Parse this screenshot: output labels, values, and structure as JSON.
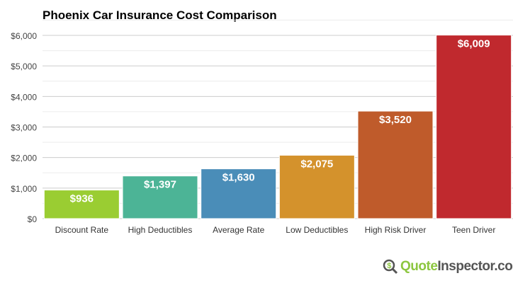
{
  "chart_data": {
    "type": "bar",
    "title": "Phoenix Car Insurance Cost Comparison",
    "categories": [
      "Discount Rate",
      "High Deductibles",
      "Average Rate",
      "Low Deductibles",
      "High Risk Driver",
      "Teen Driver"
    ],
    "values": [
      936,
      1397,
      1630,
      2075,
      3520,
      6009
    ],
    "data_labels": [
      "$936",
      "$1,397",
      "$1,630",
      "$2,075",
      "$3,520",
      "$6,009"
    ],
    "colors": [
      "#9acd32",
      "#4cb496",
      "#4a8db8",
      "#d4922c",
      "#bf5b2b",
      "#c0292e"
    ],
    "ylim": [
      0,
      6500
    ],
    "yticks": [
      0,
      1000,
      2000,
      3000,
      4000,
      5000,
      6000
    ],
    "ytick_labels": [
      "$0",
      "$1,000",
      "$2,000",
      "$3,000",
      "$4,000",
      "$5,000",
      "$6,000"
    ],
    "xlabel": "",
    "ylabel": "",
    "grid": true,
    "legend": "none"
  },
  "logo": {
    "part1": "Quote",
    "part2": "Inspector.com",
    "icon": "dollar-magnifier-icon"
  }
}
